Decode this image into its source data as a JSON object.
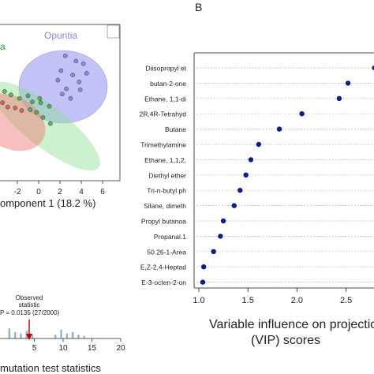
{
  "panel_label": "B",
  "chart_data": [
    {
      "type": "scatter",
      "xlabel": "omponent 1 (18.2 %)",
      "x_ticks": [
        "-2",
        "0",
        "2",
        "4",
        "6"
      ],
      "groups": [
        {
          "name": "Opuntia",
          "color": "#7777dd",
          "label_color": "#8888dd",
          "points": [
            [
              2.5,
              7.2
            ],
            [
              3.5,
              6.6
            ],
            [
              4.2,
              6.3
            ],
            [
              2.1,
              5.5
            ],
            [
              3.2,
              5.0
            ],
            [
              4.5,
              5.2
            ],
            [
              1.8,
              4.4
            ],
            [
              3.8,
              4.2
            ],
            [
              2.6,
              3.4
            ],
            [
              3.9,
              3.3
            ],
            [
              2.2,
              2.8
            ],
            [
              3.0,
              2.3
            ]
          ]
        },
        {
          "name": "a",
          "color": "#33aa33",
          "label_color": "#22aa44",
          "points": [
            [
              -4.6,
              4.4
            ],
            [
              -3.9,
              4.0
            ],
            [
              -4.4,
              3.4
            ],
            [
              -3.2,
              3.1
            ],
            [
              -2.6,
              2.7
            ],
            [
              -1.8,
              2.3
            ],
            [
              -1.0,
              2.6
            ],
            [
              0.1,
              2.3
            ],
            [
              -0.6,
              1.9
            ],
            [
              0.2,
              1.8
            ],
            [
              1.0,
              1.4
            ],
            [
              -0.8,
              1.0
            ],
            [
              -0.2,
              0.7
            ],
            [
              0.4,
              0.1
            ],
            [
              1.1,
              -0.6
            ]
          ]
        },
        {
          "name": "",
          "color": "#dd4444",
          "label_color": "#dd4444",
          "points": [
            [
              -4.9,
              2.6
            ],
            [
              -4.2,
              2.2
            ],
            [
              -3.4,
              1.8
            ],
            [
              -2.9,
              1.3
            ],
            [
              -2.2,
              1.2
            ],
            [
              -1.6,
              0.9
            ]
          ]
        }
      ]
    },
    {
      "type": "histogram",
      "annotation": [
        "Observed",
        "statistic"
      ],
      "p_text": "P = 0.0135 (27/2000)",
      "x_ticks": [
        "5",
        "10",
        "15",
        "20"
      ],
      "xlabel": "mutation test statistics",
      "observed": 7.2
    },
    {
      "type": "scatter",
      "xlabel_lines": [
        "Variable influence on projectio",
        "(VIP) scores"
      ],
      "x_ticks": [
        "1.0",
        "1.5",
        "2.0",
        "2.5"
      ],
      "xlim": [
        0.95,
        2.8
      ],
      "point_color": "#0b1c8c",
      "categories": [
        "Diisopropyl et",
        "butan-2-one",
        "Ethane, 1,1-di",
        "2R,4R-Tetrahyd",
        "Butane",
        "Trimethylamine",
        "Ethane, 1,1,2,",
        "Diethyl ether",
        "Tri-n-butyl ph",
        "Silane, dimeth",
        "Propyl butanoa",
        "Propanal.1",
        "50.26-1-Area",
        "E,Z-2,4-Heptad",
        "E-3-octen-2-on"
      ],
      "values": [
        2.79,
        2.52,
        2.43,
        2.05,
        1.82,
        1.61,
        1.53,
        1.48,
        1.42,
        1.36,
        1.25,
        1.22,
        1.15,
        1.05,
        1.04
      ]
    }
  ]
}
